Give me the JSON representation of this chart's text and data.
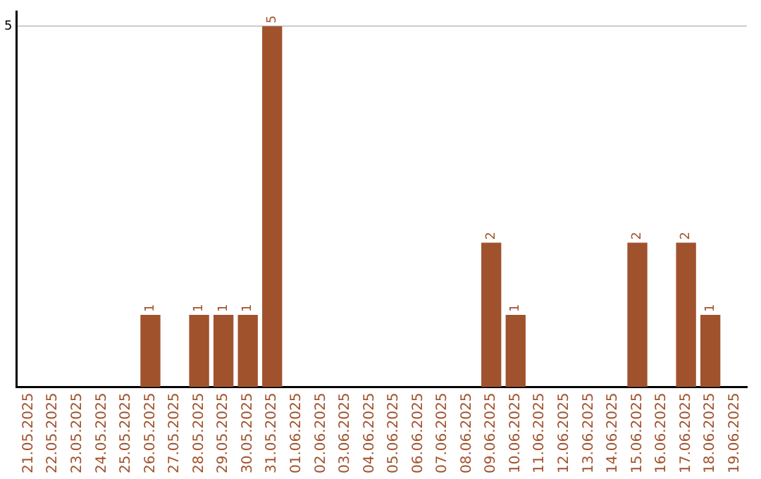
{
  "chart_data": {
    "type": "bar",
    "categories": [
      "21.05.2025",
      "22.05.2025",
      "23.05.2025",
      "24.05.2025",
      "25.05.2025",
      "26.05.2025",
      "27.05.2025",
      "28.05.2025",
      "29.05.2025",
      "30.05.2025",
      "31.05.2025",
      "01.06.2025",
      "02.06.2025",
      "03.06.2025",
      "04.06.2025",
      "05.06.2025",
      "06.06.2025",
      "07.06.2025",
      "08.06.2025",
      "09.06.2025",
      "10.06.2025",
      "11.06.2025",
      "12.06.2025",
      "13.06.2025",
      "14.06.2025",
      "15.06.2025",
      "16.06.2025",
      "17.06.2025",
      "18.06.2025",
      "19.06.2025"
    ],
    "values": [
      0,
      0,
      0,
      0,
      0,
      1,
      0,
      1,
      1,
      1,
      5,
      0,
      0,
      0,
      0,
      0,
      0,
      0,
      0,
      2,
      1,
      0,
      0,
      0,
      0,
      2,
      0,
      2,
      1,
      0
    ],
    "value_labels": [
      null,
      null,
      null,
      null,
      null,
      "1",
      null,
      "1",
      "1",
      "1",
      "5",
      null,
      null,
      null,
      null,
      null,
      null,
      null,
      null,
      "2",
      "1",
      null,
      null,
      null,
      null,
      "2",
      null,
      "2",
      "1",
      null
    ],
    "color": "#a0522d",
    "ylim": [
      0,
      5.2
    ],
    "yticks": [
      5
    ],
    "grid": "y"
  }
}
